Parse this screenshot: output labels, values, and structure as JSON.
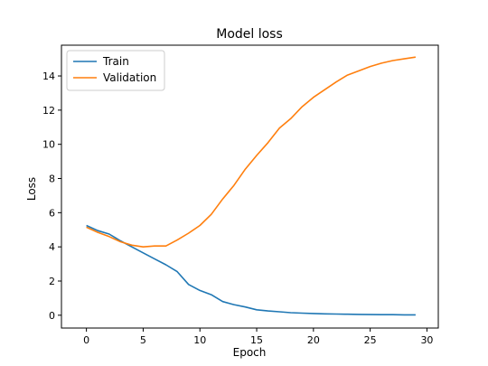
{
  "chart_data": {
    "type": "line",
    "title": "Model loss",
    "xlabel": "Epoch",
    "ylabel": "Loss",
    "xlim": [
      -2.2,
      31.0
    ],
    "ylim": [
      -0.75,
      15.8
    ],
    "xticks": [
      0,
      5,
      10,
      15,
      20,
      25,
      30
    ],
    "yticks": [
      0,
      2,
      4,
      6,
      8,
      10,
      12,
      14
    ],
    "grid": false,
    "legend": {
      "placement": "top-left"
    },
    "x": [
      0,
      1,
      2,
      3,
      4,
      5,
      6,
      7,
      8,
      9,
      10,
      11,
      12,
      13,
      14,
      15,
      16,
      17,
      18,
      19,
      20,
      21,
      22,
      23,
      24,
      25,
      26,
      27,
      28,
      29
    ],
    "series": [
      {
        "name": "Train",
        "color": "#1f77b4",
        "values": [
          5.25,
          4.95,
          4.75,
          4.35,
          4.0,
          3.65,
          3.3,
          2.95,
          2.55,
          1.8,
          1.45,
          1.2,
          0.8,
          0.62,
          0.48,
          0.32,
          0.25,
          0.2,
          0.15,
          0.12,
          0.1,
          0.08,
          0.07,
          0.06,
          0.05,
          0.04,
          0.03,
          0.03,
          0.02,
          0.02
        ]
      },
      {
        "name": "Validation",
        "color": "#ff7f0e",
        "values": [
          5.15,
          4.85,
          4.6,
          4.3,
          4.1,
          4.0,
          4.05,
          4.05,
          4.4,
          4.8,
          5.25,
          5.9,
          6.8,
          7.6,
          8.55,
          9.35,
          10.1,
          10.95,
          11.5,
          12.2,
          12.75,
          13.2,
          13.65,
          14.05,
          14.3,
          14.55,
          14.75,
          14.9,
          15.0,
          15.1
        ]
      }
    ]
  }
}
